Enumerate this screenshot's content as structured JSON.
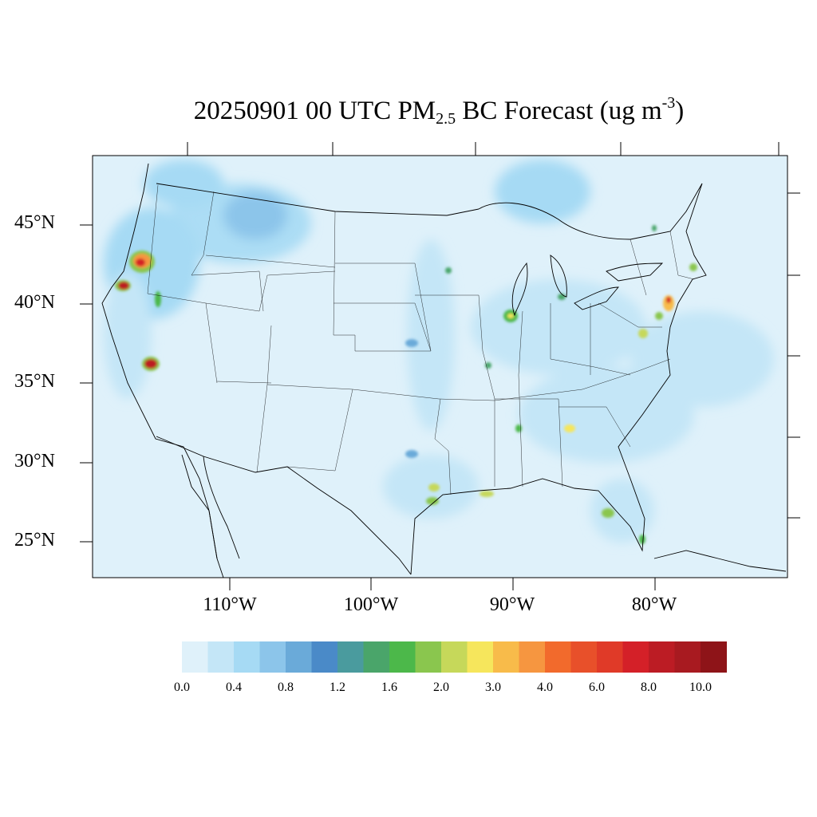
{
  "title": {
    "prefix": "20250901 00 UTC PM",
    "subscript": "2.5",
    "middle": " BC Forecast (ug m",
    "superscript": "-3",
    "suffix": ")"
  },
  "lat_labels": [
    "45°N",
    "40°N",
    "35°N",
    "30°N",
    "25°N"
  ],
  "lon_labels": [
    "110°W",
    "100°W",
    "90°W",
    "80°W"
  ],
  "colorbar": {
    "colors": [
      "#dff1fa",
      "#c4e6f7",
      "#a6daf4",
      "#8cc5ea",
      "#6aaad9",
      "#4a8ac8",
      "#4a9b9e",
      "#4aa56a",
      "#4cb84a",
      "#8ac64e",
      "#c6d85a",
      "#f6e65c",
      "#f8bb4a",
      "#f69640",
      "#f26a2c",
      "#e8502a",
      "#e03a28",
      "#d42028",
      "#bc1c24",
      "#a81a20",
      "#8e1418"
    ],
    "labels": [
      "0.0",
      "0.4",
      "0.8",
      "1.2",
      "1.6",
      "2.0",
      "3.0",
      "4.0",
      "6.0",
      "8.0",
      "10.0"
    ]
  }
}
